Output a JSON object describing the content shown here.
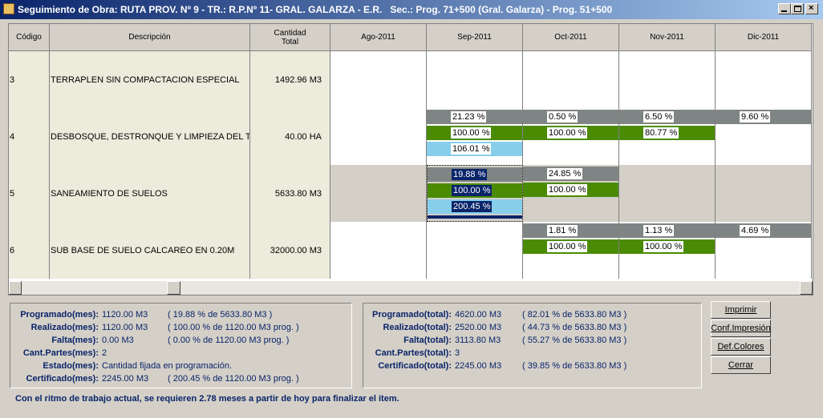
{
  "window": {
    "title": "Seguimiento de Obra: RUTA PROV. Nº 9 - TR.: R.P.Nº 11- GRAL. GALARZA - E.R.   Sec.: Prog. 71+500 (Gral. Galarza) - Prog. 51+500"
  },
  "grid": {
    "headers": [
      "Código",
      "Descripción",
      "Cantidad\nTotal",
      "Ago-2011",
      "Sep-2011",
      "Oct-2011",
      "Nov-2011",
      "Dic-2011"
    ],
    "selected": [
      2,
      1
    ],
    "rows": [
      {
        "code": "3",
        "description": "TERRAPLEN SIN COMPACTACION ESPECIAL",
        "quantity": "1492.96 M3",
        "shaded": false,
        "cells": [
          null,
          null,
          null,
          null,
          null
        ]
      },
      {
        "code": "4",
        "description": "DESBOSQUE, DESTRONQUE Y LIMPIEZA DEL TER",
        "quantity": "40.00 HA",
        "shaded": false,
        "cells": [
          null,
          [
            {
              "label": "21.23 %",
              "color": "#7f8584"
            },
            {
              "label": "100.00 %",
              "color": "#4b8b04"
            },
            {
              "label": "106.01 %",
              "color": "#87ceeb"
            }
          ],
          [
            {
              "label": "0.50 %",
              "color": "#7f8584"
            },
            {
              "label": "100.00 %",
              "color": "#4b8b04"
            }
          ],
          [
            {
              "label": "6.50 %",
              "color": "#7f8584"
            },
            {
              "label": "80.77 %",
              "color": "#4b8b04"
            }
          ],
          [
            {
              "label": "9.60 %",
              "color": "#7f8584"
            }
          ]
        ]
      },
      {
        "code": "5",
        "description": "SANEAMIENTO DE SUELOS",
        "quantity": "5633.80 M3",
        "shaded": true,
        "cells": [
          null,
          [
            {
              "label": "19.88 %",
              "color": "#7f8584"
            },
            {
              "label": "100.00 %",
              "color": "#4b8b04"
            },
            {
              "label": "200.45 %",
              "color": "#87ceeb"
            }
          ],
          [
            {
              "label": "24.85 %",
              "color": "#7f8584"
            },
            {
              "label": "100.00 %",
              "color": "#4b8b04"
            }
          ],
          null,
          null
        ]
      },
      {
        "code": "6",
        "description": "SUB BASE DE SUELO CALCAREO EN 0.20M",
        "quantity": "32000.00 M3",
        "shaded": false,
        "cells": [
          null,
          null,
          [
            {
              "label": "1.81 %",
              "color": "#7f8584"
            },
            {
              "label": "100.00 %",
              "color": "#4b8b04"
            }
          ],
          [
            {
              "label": "1.13 %",
              "color": "#7f8584"
            },
            {
              "label": "100.00 %",
              "color": "#4b8b04"
            }
          ],
          [
            {
              "label": "4.69 %",
              "color": "#7f8584"
            }
          ]
        ]
      }
    ]
  },
  "month_panel": [
    {
      "label": "Programado(mes):",
      "value": "1120.00 M3",
      "note": "( 19.88 % de 5633.80 M3 )"
    },
    {
      "label": "Realizado(mes):",
      "value": "1120.00 M3",
      "note": "( 100.00 % de 1120.00 M3 prog. )"
    },
    {
      "label": "Falta(mes):",
      "value": "0.00 M3",
      "note": "( 0.00 % de 1120.00 M3 prog. )"
    },
    {
      "label": "Cant.Partes(mes):",
      "value": "2",
      "note": null
    },
    {
      "label": "Estado(mes):",
      "value": "Cantidad fijada en programación.",
      "note": null
    },
    {
      "label": "Certificado(mes):",
      "value": "2245.00 M3",
      "note": "( 200.45 % de 1120.00 M3 prog. )"
    }
  ],
  "total_panel": [
    {
      "label": "Programado(total):",
      "value": "4620.00 M3",
      "note": "( 82.01 % de 5633.80 M3 )"
    },
    {
      "label": "Realizado(total):",
      "value": "2520.00 M3",
      "note": "( 44.73 % de 5633.80 M3 )"
    },
    {
      "label": "Falta(total):",
      "value": "3113.80 M3",
      "note": "( 55.27 % de 5633.80 M3 )"
    },
    {
      "label": "Cant.Partes(total):",
      "value": "3",
      "note": null
    },
    {
      "label": "Certificado(total):",
      "value": "2245.00 M3",
      "note": "( 39.85 % de 5633.80 M3 )"
    }
  ],
  "buttons": [
    "Imprimir",
    "Conf.Impresión",
    "Def.Colores",
    "Cerrar"
  ],
  "footer": "Con el ritmo de trabajo actual, se requieren 2.78 meses a partir de hoy para finalizar el item."
}
